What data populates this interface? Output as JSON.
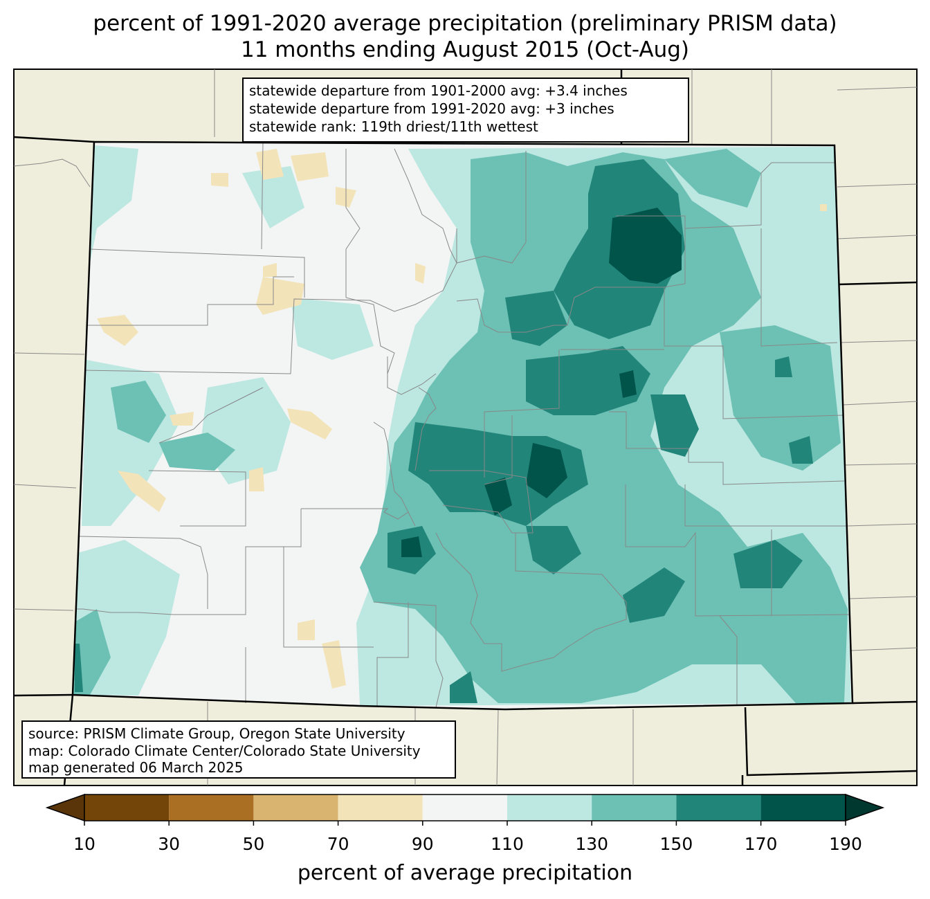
{
  "title": {
    "line1": "percent of 1991-2020 average precipitation (preliminary PRISM data)",
    "line2": "11 months ending August 2015 (Oct-Aug)"
  },
  "stats": {
    "line1": "statewide departure from 1901-2000 avg: +3.4 inches",
    "line2": "statewide departure from 1991-2020 avg: +3 inches",
    "line3": "statewide rank: 119th driest/11th wettest"
  },
  "source": {
    "line1": "source: PRISM Climate Group, Oregon State University",
    "line2": "map: Colorado Climate Center/Colorado State University",
    "line3": "map generated 06 March 2025"
  },
  "colorbar": {
    "label": "percent of average precipitation",
    "ticks": [
      "10",
      "30",
      "50",
      "70",
      "90",
      "110",
      "130",
      "150",
      "170",
      "190"
    ],
    "colors": [
      "#5a3509",
      "#744509",
      "#ab6f23",
      "#d9b470",
      "#f3e3b9",
      "#f3f5f4",
      "#bde7e1",
      "#6cc0b4",
      "#22857a",
      "#00544a",
      "#00382f"
    ]
  },
  "map_colors": {
    "outside": "#efeedc",
    "normal": "#f3f5f4",
    "dry70": "#f3e3b9",
    "wet110": "#bde7e1",
    "wet130": "#6cc0b4",
    "wet150": "#22857a",
    "wet170": "#00544a"
  }
}
